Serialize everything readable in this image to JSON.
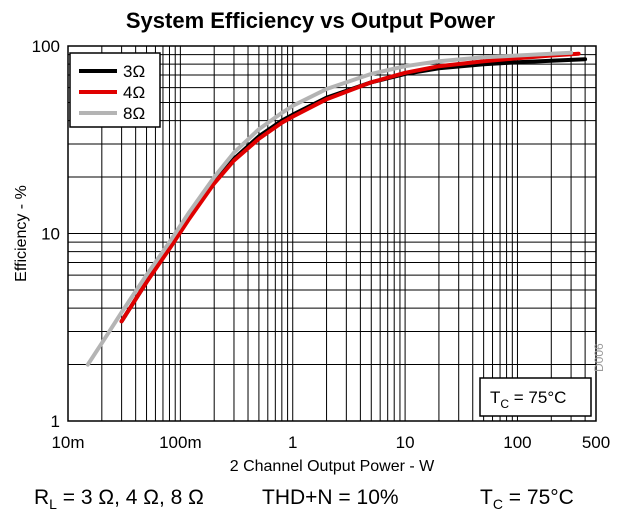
{
  "chart_data": {
    "type": "line",
    "title": "System Efficiency vs Output Power",
    "xlabel": "2 Channel Output Power - W",
    "ylabel": "Efficiency - %",
    "x_scale": "log",
    "y_scale": "log",
    "xlim": [
      0.01,
      500
    ],
    "ylim": [
      1,
      100
    ],
    "x_ticks": [
      "10m",
      "100m",
      "1",
      "10",
      "100",
      "500"
    ],
    "y_ticks": [
      "1",
      "10",
      "100"
    ],
    "grid": true,
    "legend_position": "top-left",
    "series": [
      {
        "name": "3Ω",
        "color": "#000000",
        "x": [
          0.03,
          0.05,
          0.08,
          0.12,
          0.2,
          0.3,
          0.5,
          0.8,
          1,
          2,
          5,
          10,
          20,
          50,
          100,
          200,
          400
        ],
        "y": [
          3.4,
          5.5,
          8.5,
          12.5,
          19,
          25,
          33,
          40,
          43,
          53,
          64,
          71,
          76,
          80,
          82,
          83.5,
          85
        ]
      },
      {
        "name": "4Ω",
        "color": "#e00000",
        "x": [
          0.03,
          0.05,
          0.08,
          0.12,
          0.2,
          0.3,
          0.5,
          0.8,
          1,
          2,
          5,
          10,
          20,
          50,
          100,
          200,
          350
        ],
        "y": [
          3.4,
          5.5,
          8.3,
          12,
          18.5,
          24.5,
          32,
          39,
          42,
          52,
          64,
          72,
          78,
          83,
          86,
          89,
          91
        ]
      },
      {
        "name": "8Ω",
        "color": "#b4b4b4",
        "x": [
          0.015,
          0.02,
          0.03,
          0.05,
          0.08,
          0.12,
          0.2,
          0.3,
          0.5,
          0.8,
          1,
          2,
          5,
          10,
          20,
          50,
          100,
          200,
          300
        ],
        "y": [
          2,
          2.6,
          3.8,
          6,
          9,
          13,
          20,
          27,
          36,
          44,
          48,
          59,
          71,
          78,
          83,
          87,
          89,
          91,
          92
        ]
      }
    ],
    "annotation": {
      "main": "T",
      "sub": "C",
      "rest": " = 75°C"
    }
  },
  "footer": {
    "load_main": "R",
    "load_sub": "L",
    "load_rest": " = 3 Ω, 4 Ω, 8 Ω",
    "thd": "THD+N = 10%",
    "temp_main": "T",
    "temp_sub": "C",
    "temp_rest": " = 75°C"
  },
  "figure_id": "D006"
}
